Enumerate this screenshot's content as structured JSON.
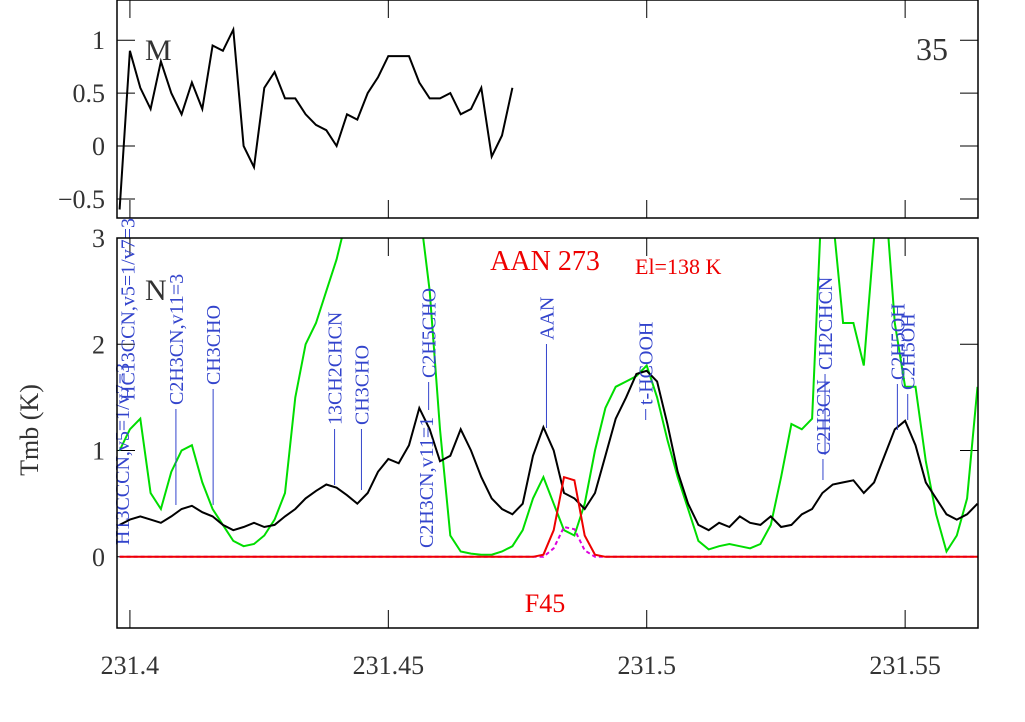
{
  "chart_data": [
    {
      "type": "line",
      "panel_label": "M",
      "panel_number": "35",
      "x": [
        231.398,
        231.4,
        231.402,
        231.404,
        231.406,
        231.408,
        231.41,
        231.412,
        231.414,
        231.416,
        231.418,
        231.42,
        231.422,
        231.424,
        231.426,
        231.428,
        231.43,
        231.432,
        231.434,
        231.436,
        231.438,
        231.44,
        231.442,
        231.444,
        231.446,
        231.448,
        231.45,
        231.452,
        231.454,
        231.456,
        231.458,
        231.46,
        231.462,
        231.464,
        231.466,
        231.468,
        231.47,
        231.472,
        231.474
      ],
      "series": [
        {
          "color": "#000000",
          "values": [
            -0.6,
            0.9,
            0.55,
            0.35,
            0.8,
            0.5,
            0.3,
            0.6,
            0.35,
            0.95,
            0.9,
            1.1,
            0.0,
            -0.2,
            0.55,
            0.7,
            0.45,
            0.45,
            0.3,
            0.2,
            0.15,
            0.0,
            0.3,
            0.25,
            0.5,
            0.65,
            0.85,
            0.85,
            0.85,
            0.6,
            0.45,
            0.45,
            0.5,
            0.3,
            0.35,
            0.55,
            -0.1,
            0.1,
            0.55
          ]
        }
      ],
      "xlim": [
        231.3975,
        231.5641
      ],
      "xticks": [
        231.4,
        231.45,
        231.5,
        231.55
      ],
      "ylim": [
        -0.68,
        1.38
      ],
      "yticks": [
        {
          "value": -0.5,
          "label": "−0.5"
        },
        0,
        0.5,
        1
      ]
    },
    {
      "type": "line",
      "panel_label": "N",
      "ylabel": "Tmb (K)",
      "annotations": [
        "AAN 273",
        "El=138 K",
        "F45"
      ],
      "x": [
        231.398,
        231.4,
        231.402,
        231.404,
        231.406,
        231.408,
        231.41,
        231.412,
        231.414,
        231.416,
        231.418,
        231.42,
        231.422,
        231.424,
        231.426,
        231.428,
        231.43,
        231.432,
        231.434,
        231.436,
        231.438,
        231.44,
        231.442,
        231.444,
        231.446,
        231.448,
        231.45,
        231.452,
        231.454,
        231.456,
        231.458,
        231.46,
        231.462,
        231.464,
        231.466,
        231.468,
        231.47,
        231.472,
        231.474,
        231.476,
        231.478,
        231.48,
        231.482,
        231.484,
        231.486,
        231.488,
        231.49,
        231.492,
        231.494,
        231.496,
        231.498,
        231.5,
        231.502,
        231.504,
        231.506,
        231.508,
        231.51,
        231.512,
        231.514,
        231.516,
        231.518,
        231.52,
        231.522,
        231.524,
        231.526,
        231.528,
        231.53,
        231.532,
        231.534,
        231.536,
        231.538,
        231.54,
        231.542,
        231.544,
        231.546,
        231.548,
        231.55,
        231.552,
        231.554,
        231.556,
        231.558,
        231.56,
        231.562,
        231.564
      ],
      "series": [
        {
          "color": "#00dd00",
          "values": [
            1.0,
            1.2,
            1.3,
            0.6,
            0.45,
            0.8,
            1.0,
            1.05,
            0.7,
            0.45,
            0.3,
            0.15,
            0.1,
            0.12,
            0.2,
            0.35,
            0.6,
            1.5,
            2.0,
            2.2,
            2.5,
            2.8,
            3.2,
            3.5,
            3.5,
            3.3,
            3.5,
            3.2,
            3.5,
            3.3,
            2.5,
            1.2,
            0.2,
            0.05,
            0.03,
            0.02,
            0.02,
            0.05,
            0.1,
            0.25,
            0.55,
            0.75,
            0.5,
            0.25,
            0.2,
            0.5,
            1.0,
            1.4,
            1.6,
            1.65,
            1.7,
            1.8,
            1.5,
            1.1,
            0.75,
            0.45,
            0.15,
            0.07,
            0.1,
            0.12,
            0.1,
            0.08,
            0.12,
            0.3,
            0.75,
            1.25,
            1.2,
            1.3,
            3.5,
            3.2,
            2.2,
            2.2,
            1.8,
            3.0,
            3.5,
            2.2,
            1.6,
            1.6,
            0.9,
            0.4,
            0.05,
            0.2,
            0.55,
            1.6
          ]
        },
        {
          "color": "#000000",
          "values": [
            0.3,
            0.35,
            0.38,
            0.35,
            0.32,
            0.38,
            0.45,
            0.48,
            0.42,
            0.38,
            0.3,
            0.25,
            0.28,
            0.32,
            0.28,
            0.3,
            0.38,
            0.45,
            0.55,
            0.62,
            0.68,
            0.65,
            0.58,
            0.5,
            0.6,
            0.8,
            0.92,
            0.88,
            1.05,
            1.4,
            1.2,
            0.9,
            0.95,
            1.2,
            1.0,
            0.75,
            0.55,
            0.45,
            0.4,
            0.5,
            0.95,
            1.22,
            1.0,
            0.6,
            0.55,
            0.45,
            0.6,
            0.95,
            1.3,
            1.5,
            1.72,
            1.75,
            1.65,
            1.25,
            0.8,
            0.5,
            0.3,
            0.25,
            0.32,
            0.28,
            0.38,
            0.32,
            0.3,
            0.38,
            0.28,
            0.3,
            0.4,
            0.45,
            0.6,
            0.68,
            0.7,
            0.72,
            0.6,
            0.7,
            0.95,
            1.2,
            1.28,
            1.05,
            0.7,
            0.55,
            0.4,
            0.35,
            0.4,
            0.5
          ]
        },
        {
          "color": "#dd00dd",
          "dashed": true,
          "values": [
            0,
            0,
            0,
            0,
            0,
            0,
            0,
            0,
            0,
            0,
            0,
            0,
            0,
            0,
            0,
            0,
            0,
            0,
            0,
            0,
            0,
            0,
            0,
            0,
            0,
            0,
            0,
            0,
            0,
            0,
            0,
            0,
            0,
            0,
            0,
            0,
            0,
            0,
            0,
            0,
            0,
            0,
            0.08,
            0.28,
            0.26,
            0.06,
            0,
            0,
            0,
            0,
            0,
            0,
            0,
            0,
            0,
            0,
            0,
            0,
            0,
            0,
            0,
            0,
            0,
            0,
            0,
            0,
            0,
            0,
            0,
            0,
            0,
            0,
            0,
            0,
            0,
            0,
            0,
            0,
            0,
            0,
            0,
            0,
            0,
            0
          ]
        },
        {
          "color": "#ee0000",
          "values": [
            0,
            0,
            0,
            0,
            0,
            0,
            0,
            0,
            0,
            0,
            0,
            0,
            0,
            0,
            0,
            0,
            0,
            0,
            0,
            0,
            0,
            0,
            0,
            0,
            0,
            0,
            0,
            0,
            0,
            0,
            0,
            0,
            0,
            0,
            0,
            0,
            0,
            0,
            0,
            0,
            0,
            0.02,
            0.25,
            0.75,
            0.72,
            0.2,
            0.02,
            0,
            0,
            0,
            0,
            0,
            0,
            0,
            0,
            0,
            0,
            0,
            0,
            0,
            0,
            0,
            0,
            0,
            0,
            0,
            0,
            0,
            0,
            0,
            0,
            0,
            0,
            0,
            0,
            0,
            0,
            0,
            0,
            0,
            0,
            0,
            0,
            0
          ]
        }
      ],
      "line_ids": [
        {
          "label": "H13CCCN,v5=1/v7=3",
          "x": 231.3985
        },
        {
          "label": "HC13CCN,v5=1/v7=3",
          "x": 231.3995
        },
        {
          "label": "C2H3CN,v11=3",
          "x": 231.4089
        },
        {
          "label": "CH3CHO",
          "x": 231.4161
        },
        {
          "label": "13CH2CHCN",
          "x": 231.4396
        },
        {
          "label": "CH3CHO",
          "x": 231.4448
        },
        {
          "label": "C2H3CN,v11=1",
          "x": 231.4573
        },
        {
          "label": "C2H5CHO",
          "x": 231.4578
        },
        {
          "label": "AAN",
          "x": 231.4806
        },
        {
          "label": "t-HCOOH",
          "x": 231.4998
        },
        {
          "label": "C2H3CN",
          "x": 231.5341
        },
        {
          "label": "CH2CHCN",
          "x": 231.5345
        },
        {
          "label": "C2H5OH",
          "x": 231.5485
        },
        {
          "label": "C2H5OH",
          "x": 231.5505
        }
      ],
      "line_id_color": "#3344cc",
      "xlim": [
        231.3975,
        231.5641
      ],
      "xticks": [
        231.4,
        231.45,
        231.5,
        231.55
      ],
      "ylim": [
        -0.67,
        3
      ],
      "yticks": [
        0,
        1,
        2,
        3
      ]
    }
  ]
}
